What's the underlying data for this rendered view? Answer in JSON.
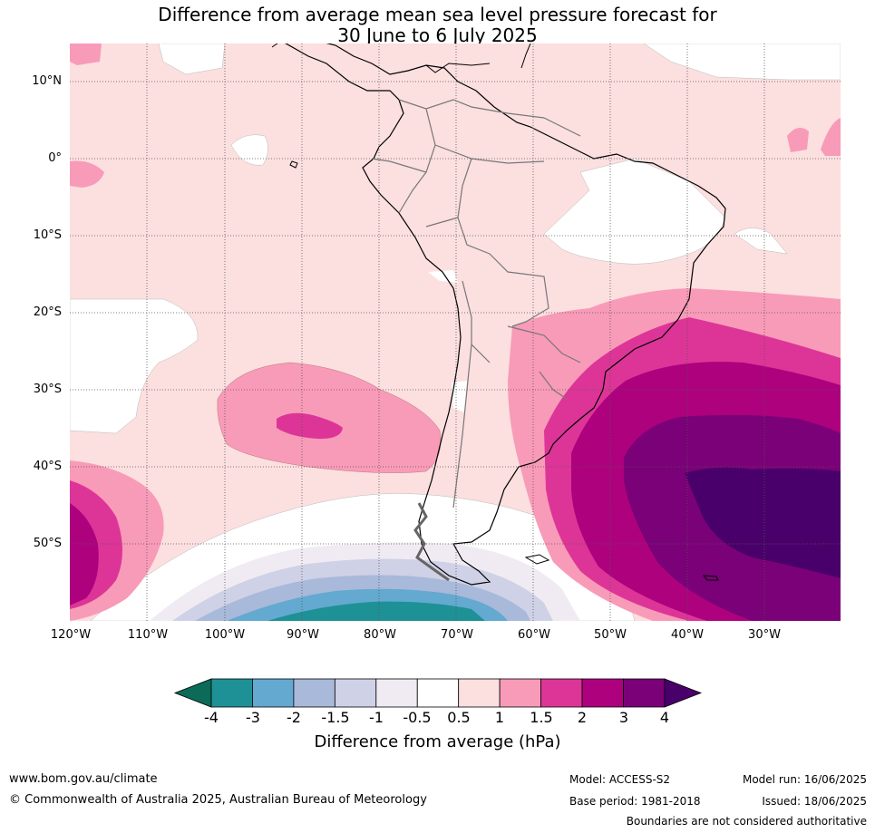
{
  "title": {
    "line1": "Difference from average mean sea level pressure forecast for",
    "line2": "30 June to 6 July 2025"
  },
  "lat_labels": [
    "10°N",
    "0°",
    "10°S",
    "20°S",
    "30°S",
    "40°S",
    "50°S"
  ],
  "lon_labels": [
    "120°W",
    "110°W",
    "100°W",
    "90°W",
    "80°W",
    "70°W",
    "60°W",
    "50°W",
    "40°W",
    "30°W"
  ],
  "colorbar": {
    "title": "Difference from average (hPa)",
    "ticks": [
      "-4",
      "-3",
      "-2",
      "-1.5",
      "-1",
      "-0.5",
      "0.5",
      "1",
      "1.5",
      "2",
      "3",
      "4"
    ],
    "colors": [
      "#0c6b58",
      "#1e9196",
      "#63a9d0",
      "#a8b9da",
      "#cfd1e6",
      "#f0ebf3",
      "#ffffff",
      "#fcdfdf",
      "#f89bb8",
      "#dd3597",
      "#ad017e",
      "#7a0177",
      "#49006a"
    ]
  },
  "footer": {
    "website": "www.bom.gov.au/climate",
    "copyright": "© Commonwealth of Australia 2025, Australian Bureau of Meteorology",
    "model": "Model: ACCESS-S2",
    "base_period": "Base period: 1981-2018",
    "model_run": "Model run: 16/06/2025",
    "issued": "Issued: 18/06/2025",
    "disclaimer": "Boundaries are not considered authoritative"
  }
}
